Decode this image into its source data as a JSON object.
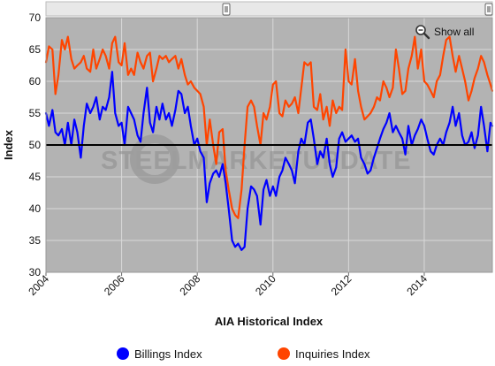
{
  "chart_data": {
    "type": "line",
    "title": "",
    "xlabel": "AIA Historical Index",
    "ylabel": "Index",
    "ylim": [
      30,
      70
    ],
    "yticks": [
      "30",
      "35",
      "40",
      "45",
      "50",
      "55",
      "60",
      "65",
      "70"
    ],
    "xlim": [
      2004.0,
      2015.8
    ],
    "xticks": [
      "2004",
      "2006",
      "2008",
      "2010",
      "2012",
      "2014"
    ],
    "reference_line": 50,
    "grid": true,
    "legend_position": "bottom",
    "watermark": "STEELMARKETUPDATE",
    "series": [
      {
        "name": "Billings Index",
        "color": "#0000ff",
        "points": [
          [
            2004.0,
            55.0
          ],
          [
            2004.08,
            53.0
          ],
          [
            2004.17,
            55.5
          ],
          [
            2004.25,
            52.0
          ],
          [
            2004.33,
            51.5
          ],
          [
            2004.42,
            52.5
          ],
          [
            2004.5,
            50.0
          ],
          [
            2004.58,
            53.5
          ],
          [
            2004.67,
            50.0
          ],
          [
            2004.75,
            54.0
          ],
          [
            2004.83,
            52.0
          ],
          [
            2004.92,
            48.0
          ],
          [
            2005.0,
            53.0
          ],
          [
            2005.08,
            56.5
          ],
          [
            2005.17,
            55.0
          ],
          [
            2005.25,
            56.0
          ],
          [
            2005.33,
            57.5
          ],
          [
            2005.42,
            54.0
          ],
          [
            2005.5,
            56.0
          ],
          [
            2005.58,
            55.5
          ],
          [
            2005.67,
            57.5
          ],
          [
            2005.75,
            61.5
          ],
          [
            2005.83,
            55.0
          ],
          [
            2005.92,
            53.0
          ],
          [
            2006.0,
            53.5
          ],
          [
            2006.08,
            50.0
          ],
          [
            2006.17,
            56.0
          ],
          [
            2006.25,
            55.0
          ],
          [
            2006.33,
            54.0
          ],
          [
            2006.42,
            51.5
          ],
          [
            2006.5,
            50.5
          ],
          [
            2006.58,
            55.0
          ],
          [
            2006.67,
            59.0
          ],
          [
            2006.75,
            53.5
          ],
          [
            2006.83,
            52.0
          ],
          [
            2006.92,
            56.0
          ],
          [
            2007.0,
            54.0
          ],
          [
            2007.08,
            56.5
          ],
          [
            2007.17,
            54.0
          ],
          [
            2007.25,
            55.0
          ],
          [
            2007.33,
            53.0
          ],
          [
            2007.42,
            55.5
          ],
          [
            2007.5,
            58.5
          ],
          [
            2007.58,
            58.0
          ],
          [
            2007.67,
            55.0
          ],
          [
            2007.75,
            56.0
          ],
          [
            2007.83,
            53.0
          ],
          [
            2007.92,
            50.0
          ],
          [
            2008.0,
            51.0
          ],
          [
            2008.08,
            49.0
          ],
          [
            2008.17,
            48.0
          ],
          [
            2008.25,
            41.0
          ],
          [
            2008.33,
            44.0
          ],
          [
            2008.42,
            45.5
          ],
          [
            2008.5,
            46.0
          ],
          [
            2008.58,
            45.0
          ],
          [
            2008.67,
            47.0
          ],
          [
            2008.75,
            44.0
          ],
          [
            2008.83,
            40.0
          ],
          [
            2008.92,
            35.0
          ],
          [
            2009.0,
            34.0
          ],
          [
            2009.08,
            34.5
          ],
          [
            2009.17,
            33.5
          ],
          [
            2009.25,
            34.0
          ],
          [
            2009.33,
            40.0
          ],
          [
            2009.42,
            43.5
          ],
          [
            2009.5,
            43.0
          ],
          [
            2009.58,
            42.0
          ],
          [
            2009.67,
            37.5
          ],
          [
            2009.75,
            43.0
          ],
          [
            2009.83,
            44.5
          ],
          [
            2009.92,
            42.0
          ],
          [
            2010.0,
            43.5
          ],
          [
            2010.08,
            42.0
          ],
          [
            2010.17,
            45.0
          ],
          [
            2010.25,
            46.0
          ],
          [
            2010.33,
            48.0
          ],
          [
            2010.42,
            47.0
          ],
          [
            2010.5,
            46.0
          ],
          [
            2010.58,
            44.0
          ],
          [
            2010.67,
            49.0
          ],
          [
            2010.75,
            51.0
          ],
          [
            2010.83,
            50.0
          ],
          [
            2010.92,
            53.5
          ],
          [
            2011.0,
            54.0
          ],
          [
            2011.08,
            51.0
          ],
          [
            2011.17,
            47.0
          ],
          [
            2011.25,
            49.0
          ],
          [
            2011.33,
            48.0
          ],
          [
            2011.42,
            51.0
          ],
          [
            2011.5,
            47.0
          ],
          [
            2011.58,
            45.0
          ],
          [
            2011.67,
            46.5
          ],
          [
            2011.75,
            51.0
          ],
          [
            2011.83,
            52.0
          ],
          [
            2011.92,
            50.5
          ],
          [
            2012.0,
            51.0
          ],
          [
            2012.08,
            51.5
          ],
          [
            2012.17,
            50.5
          ],
          [
            2012.25,
            51.0
          ],
          [
            2012.33,
            48.0
          ],
          [
            2012.42,
            47.0
          ],
          [
            2012.5,
            45.5
          ],
          [
            2012.58,
            46.0
          ],
          [
            2012.67,
            48.0
          ],
          [
            2012.75,
            49.5
          ],
          [
            2012.83,
            51.0
          ],
          [
            2012.92,
            52.5
          ],
          [
            2013.0,
            53.5
          ],
          [
            2013.08,
            55.0
          ],
          [
            2013.17,
            52.0
          ],
          [
            2013.25,
            53.0
          ],
          [
            2013.33,
            52.0
          ],
          [
            2013.42,
            51.0
          ],
          [
            2013.5,
            48.5
          ],
          [
            2013.58,
            53.0
          ],
          [
            2013.67,
            50.0
          ],
          [
            2013.75,
            51.5
          ],
          [
            2013.83,
            52.5
          ],
          [
            2013.92,
            54.0
          ],
          [
            2014.0,
            53.0
          ],
          [
            2014.08,
            51.0
          ],
          [
            2014.17,
            49.0
          ],
          [
            2014.25,
            48.5
          ],
          [
            2014.33,
            50.0
          ],
          [
            2014.42,
            51.0
          ],
          [
            2014.5,
            50.0
          ],
          [
            2014.58,
            52.0
          ],
          [
            2014.67,
            53.5
          ],
          [
            2014.75,
            56.0
          ],
          [
            2014.83,
            53.0
          ],
          [
            2014.92,
            55.0
          ],
          [
            2015.0,
            51.5
          ],
          [
            2015.08,
            50.0
          ],
          [
            2015.17,
            50.5
          ],
          [
            2015.25,
            52.0
          ],
          [
            2015.33,
            49.5
          ],
          [
            2015.42,
            51.5
          ],
          [
            2015.5,
            56.0
          ],
          [
            2015.58,
            53.0
          ],
          [
            2015.67,
            49.0
          ],
          [
            2015.75,
            53.5
          ],
          [
            2015.8,
            53.0
          ]
        ]
      },
      {
        "name": "Inquiries Index",
        "color": "#ff4500",
        "points": [
          [
            2004.0,
            63.0
          ],
          [
            2004.08,
            65.5
          ],
          [
            2004.17,
            65.0
          ],
          [
            2004.25,
            58.0
          ],
          [
            2004.33,
            61.0
          ],
          [
            2004.42,
            66.5
          ],
          [
            2004.5,
            65.0
          ],
          [
            2004.58,
            67.0
          ],
          [
            2004.67,
            63.5
          ],
          [
            2004.75,
            62.0
          ],
          [
            2004.83,
            62.5
          ],
          [
            2004.92,
            63.0
          ],
          [
            2005.0,
            64.0
          ],
          [
            2005.08,
            62.0
          ],
          [
            2005.17,
            61.5
          ],
          [
            2005.25,
            65.0
          ],
          [
            2005.33,
            62.0
          ],
          [
            2005.42,
            63.5
          ],
          [
            2005.5,
            65.0
          ],
          [
            2005.58,
            64.0
          ],
          [
            2005.67,
            62.0
          ],
          [
            2005.75,
            66.0
          ],
          [
            2005.83,
            67.0
          ],
          [
            2005.92,
            63.0
          ],
          [
            2006.0,
            62.5
          ],
          [
            2006.08,
            66.0
          ],
          [
            2006.17,
            61.0
          ],
          [
            2006.25,
            62.0
          ],
          [
            2006.33,
            61.0
          ],
          [
            2006.42,
            64.5
          ],
          [
            2006.5,
            63.0
          ],
          [
            2006.58,
            62.0
          ],
          [
            2006.67,
            64.0
          ],
          [
            2006.75,
            64.5
          ],
          [
            2006.83,
            60.0
          ],
          [
            2006.92,
            62.0
          ],
          [
            2007.0,
            64.0
          ],
          [
            2007.08,
            63.5
          ],
          [
            2007.17,
            64.0
          ],
          [
            2007.25,
            63.0
          ],
          [
            2007.33,
            63.5
          ],
          [
            2007.42,
            64.0
          ],
          [
            2007.5,
            62.0
          ],
          [
            2007.58,
            63.5
          ],
          [
            2007.67,
            61.0
          ],
          [
            2007.75,
            59.5
          ],
          [
            2007.83,
            60.0
          ],
          [
            2007.92,
            59.0
          ],
          [
            2008.0,
            58.5
          ],
          [
            2008.08,
            58.0
          ],
          [
            2008.17,
            56.0
          ],
          [
            2008.25,
            50.0
          ],
          [
            2008.33,
            54.0
          ],
          [
            2008.42,
            50.0
          ],
          [
            2008.5,
            47.0
          ],
          [
            2008.58,
            52.0
          ],
          [
            2008.67,
            52.5
          ],
          [
            2008.75,
            46.0
          ],
          [
            2008.83,
            43.0
          ],
          [
            2008.92,
            40.0
          ],
          [
            2009.0,
            39.0
          ],
          [
            2009.08,
            38.5
          ],
          [
            2009.17,
            43.0
          ],
          [
            2009.25,
            50.0
          ],
          [
            2009.33,
            56.0
          ],
          [
            2009.42,
            57.0
          ],
          [
            2009.5,
            56.0
          ],
          [
            2009.58,
            53.0
          ],
          [
            2009.67,
            50.0
          ],
          [
            2009.75,
            55.0
          ],
          [
            2009.83,
            54.0
          ],
          [
            2009.92,
            56.0
          ],
          [
            2010.0,
            59.5
          ],
          [
            2010.08,
            60.0
          ],
          [
            2010.17,
            55.0
          ],
          [
            2010.25,
            54.5
          ],
          [
            2010.33,
            57.0
          ],
          [
            2010.42,
            56.0
          ],
          [
            2010.5,
            56.5
          ],
          [
            2010.58,
            57.5
          ],
          [
            2010.67,
            55.0
          ],
          [
            2010.75,
            59.0
          ],
          [
            2010.83,
            63.0
          ],
          [
            2010.92,
            62.5
          ],
          [
            2011.0,
            63.0
          ],
          [
            2011.08,
            56.0
          ],
          [
            2011.17,
            55.5
          ],
          [
            2011.25,
            58.0
          ],
          [
            2011.33,
            54.0
          ],
          [
            2011.42,
            56.0
          ],
          [
            2011.5,
            53.0
          ],
          [
            2011.58,
            57.0
          ],
          [
            2011.67,
            55.0
          ],
          [
            2011.75,
            56.0
          ],
          [
            2011.83,
            55.5
          ],
          [
            2011.92,
            65.0
          ],
          [
            2012.0,
            60.0
          ],
          [
            2012.08,
            59.5
          ],
          [
            2012.17,
            63.5
          ],
          [
            2012.25,
            58.5
          ],
          [
            2012.33,
            56.0
          ],
          [
            2012.42,
            54.0
          ],
          [
            2012.5,
            54.5
          ],
          [
            2012.58,
            55.0
          ],
          [
            2012.67,
            56.0
          ],
          [
            2012.75,
            57.5
          ],
          [
            2012.83,
            57.0
          ],
          [
            2012.92,
            60.0
          ],
          [
            2013.0,
            59.0
          ],
          [
            2013.08,
            57.5
          ],
          [
            2013.17,
            59.0
          ],
          [
            2013.25,
            65.0
          ],
          [
            2013.33,
            62.0
          ],
          [
            2013.42,
            58.0
          ],
          [
            2013.5,
            58.5
          ],
          [
            2013.58,
            62.0
          ],
          [
            2013.67,
            64.0
          ],
          [
            2013.75,
            67.0
          ],
          [
            2013.83,
            62.0
          ],
          [
            2013.92,
            65.0
          ],
          [
            2014.0,
            60.0
          ],
          [
            2014.08,
            59.5
          ],
          [
            2014.17,
            58.5
          ],
          [
            2014.25,
            57.5
          ],
          [
            2014.33,
            60.0
          ],
          [
            2014.42,
            61.0
          ],
          [
            2014.5,
            64.0
          ],
          [
            2014.58,
            66.5
          ],
          [
            2014.67,
            67.0
          ],
          [
            2014.75,
            64.0
          ],
          [
            2014.83,
            61.5
          ],
          [
            2014.92,
            64.0
          ],
          [
            2015.0,
            62.0
          ],
          [
            2015.08,
            60.0
          ],
          [
            2015.17,
            57.0
          ],
          [
            2015.25,
            58.5
          ],
          [
            2015.33,
            60.5
          ],
          [
            2015.42,
            62.0
          ],
          [
            2015.5,
            64.0
          ],
          [
            2015.58,
            63.0
          ],
          [
            2015.67,
            61.0
          ],
          [
            2015.75,
            59.5
          ],
          [
            2015.8,
            58.5
          ]
        ]
      }
    ]
  },
  "controls": {
    "show_all_label": "Show all",
    "zoom_icon": "zoom-out-magnifier-icon",
    "navigator_handle_icon": "grip-handle-icon"
  },
  "legend": {
    "items": [
      {
        "label": "Billings Index",
        "color": "#0000ff"
      },
      {
        "label": "Inquiries Index",
        "color": "#ff4500"
      }
    ]
  }
}
